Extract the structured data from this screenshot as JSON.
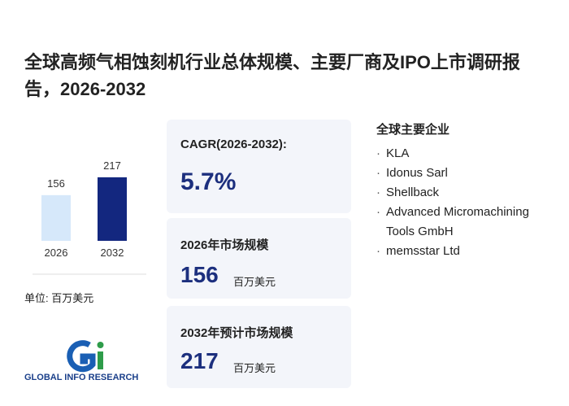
{
  "title": "全球高频气相蚀刻机行业总体规模、主要厂商及IPO上市调研报告，2026-2032",
  "chart_data": {
    "type": "bar",
    "categories": [
      "2026",
      "2032"
    ],
    "values": [
      156,
      217
    ],
    "colors": [
      "#d6e8fa",
      "#13277f"
    ],
    "unit_label": "单位: 百万美元"
  },
  "cards": [
    {
      "label": "CAGR(2026-2032):",
      "value": "5.7%"
    },
    {
      "label": "2026年市场规模",
      "value": 156,
      "unit": "百万美元"
    },
    {
      "label": "2032年预计市场规模",
      "value": 217,
      "unit": "百万美元"
    }
  ],
  "companies": {
    "heading": "全球主要企业",
    "items": [
      "KLA",
      "Idonus Sarl",
      "Shellback",
      "Advanced Micromachining",
      "Tools GmbH",
      "memsstar Ltd"
    ]
  },
  "logo": "GLOBAL INFO RESEARCH"
}
